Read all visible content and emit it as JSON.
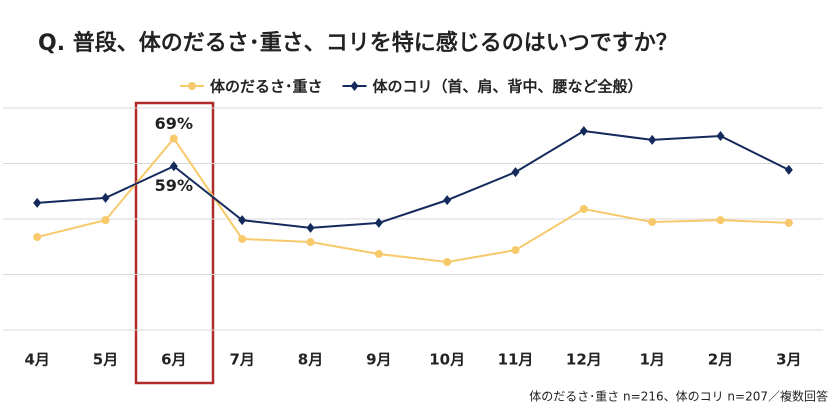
{
  "chart_data": {
    "type": "line",
    "title": "Q. 普段、体のだるさ･重さ、コリを特に感じるのはいつですか？",
    "categories": [
      "4月",
      "5月",
      "6月",
      "7月",
      "8月",
      "9月",
      "10月",
      "11月",
      "12月",
      "1月",
      "2月",
      "3月"
    ],
    "series": [
      {
        "name": "体のだるさ･重さ",
        "color": "#f7c96a",
        "marker": "circle",
        "values": [
          33.5,
          39.6,
          69,
          32.8,
          31.7,
          27.4,
          24.5,
          28.8,
          43.6,
          38.9,
          39.6,
          38.6
        ],
        "value_labels": [
          null,
          null,
          "69%",
          null,
          null,
          null,
          null,
          null,
          null,
          null,
          null,
          null
        ]
      },
      {
        "name": "体のコリ（首、肩、背中、腰など全般）",
        "color": "#142a5c",
        "marker": "diamond",
        "values": [
          45.8,
          47.6,
          59,
          39.6,
          36.8,
          38.6,
          46.8,
          56.9,
          71.7,
          68.5,
          69.9,
          57.7
        ],
        "value_labels": [
          null,
          null,
          "59%",
          null,
          null,
          null,
          null,
          null,
          null,
          null,
          null,
          null
        ]
      }
    ],
    "ylim": [
      0,
      80
    ],
    "yticks": [
      0,
      20,
      40,
      60,
      80
    ],
    "grid": true,
    "legend": "top",
    "note": "体のだるさ･重さ n=216、体のコリ n=207／複数回答"
  }
}
